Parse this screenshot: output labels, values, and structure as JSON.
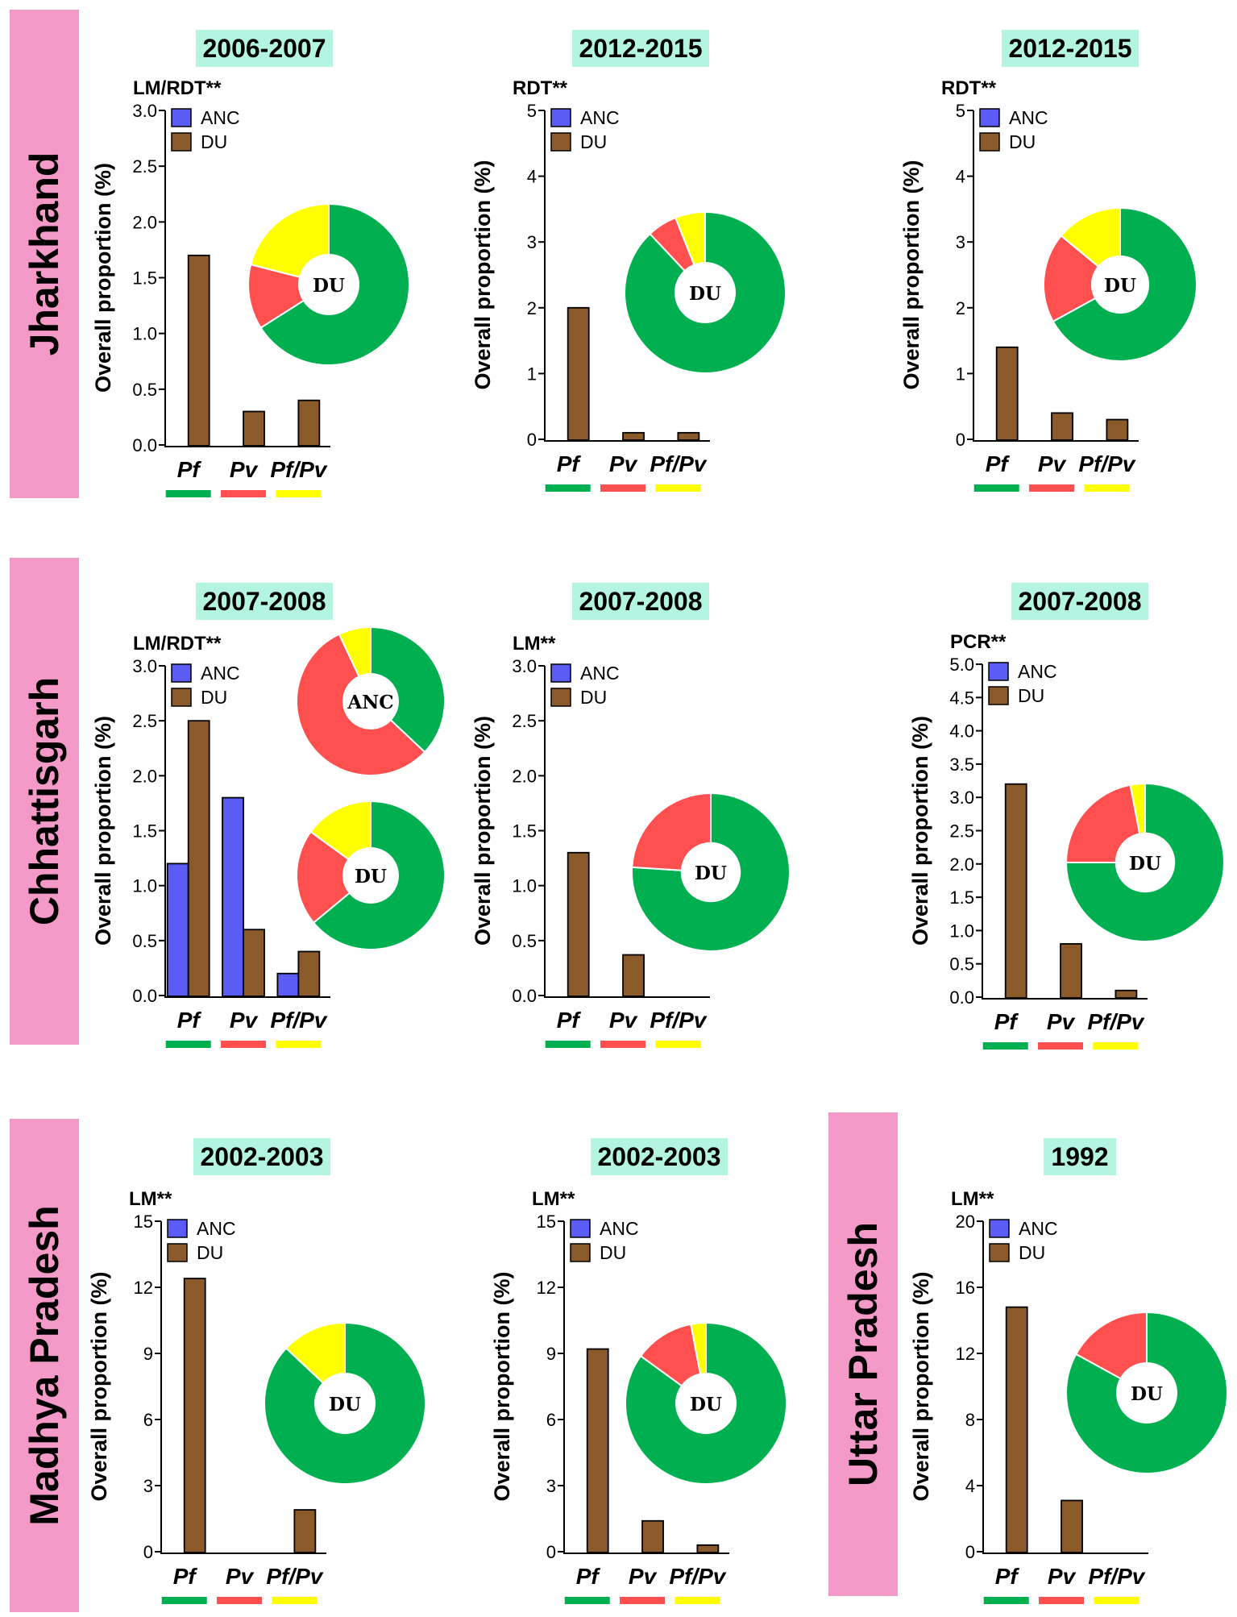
{
  "colors": {
    "anc": "#5a5cf5",
    "du": "#8b5a2b",
    "pf": "#00b050",
    "pv": "#ff4f4f",
    "mixed": "#ffff00",
    "state_bg": "#f49ac8",
    "period_bg": "#b3f5e0"
  },
  "states": [
    {
      "name": "Jharkhand"
    },
    {
      "name": "Chhattisgarh"
    },
    {
      "name": "Madhya Pradesh"
    },
    {
      "name": "Uttar Pradesh"
    }
  ],
  "chart_data": [
    {
      "type": "bar",
      "state": "Jharkhand",
      "period": "2006-2007",
      "method": "LM/RDT**",
      "ylabel": "Overall proportion (%)",
      "ylim": [
        0,
        3.0
      ],
      "yticks": [
        "0.0",
        "0.5",
        "1.0",
        "1.5",
        "2.0",
        "2.5",
        "3.0"
      ],
      "categories": [
        "Pf",
        "Pv",
        "Pf/Pv"
      ],
      "legend": [
        "ANC",
        "DU"
      ],
      "series": [
        {
          "name": "ANC",
          "values": [
            null,
            null,
            null
          ]
        },
        {
          "name": "DU",
          "values": [
            1.7,
            0.3,
            0.4
          ]
        }
      ],
      "pies": [
        {
          "label": "DU",
          "slices": [
            {
              "name": "Pf",
              "value": 66
            },
            {
              "name": "Pv",
              "value": 13
            },
            {
              "name": "Pf/Pv",
              "value": 21
            }
          ]
        }
      ]
    },
    {
      "type": "bar",
      "state": "Jharkhand",
      "period": "2012-2015",
      "method": "RDT**",
      "ylabel": "Overall proportion (%)",
      "ylim": [
        0,
        5
      ],
      "yticks": [
        "0",
        "1",
        "2",
        "3",
        "4",
        "5"
      ],
      "categories": [
        "Pf",
        "Pv",
        "Pf/Pv"
      ],
      "legend": [
        "ANC",
        "DU"
      ],
      "series": [
        {
          "name": "ANC",
          "values": [
            null,
            null,
            null
          ]
        },
        {
          "name": "DU",
          "values": [
            2.0,
            0.1,
            0.1
          ]
        }
      ],
      "pies": [
        {
          "label": "DU",
          "slices": [
            {
              "name": "Pf",
              "value": 88
            },
            {
              "name": "Pv",
              "value": 6
            },
            {
              "name": "Pf/Pv",
              "value": 6
            }
          ]
        }
      ]
    },
    {
      "type": "bar",
      "state": "Jharkhand",
      "period": "2012-2015",
      "method": "RDT**",
      "ylabel": "Overall proportion (%)",
      "ylim": [
        0,
        5
      ],
      "yticks": [
        "0",
        "1",
        "2",
        "3",
        "4",
        "5"
      ],
      "categories": [
        "Pf",
        "Pv",
        "Pf/Pv"
      ],
      "legend": [
        "ANC",
        "DU"
      ],
      "series": [
        {
          "name": "ANC",
          "values": [
            null,
            null,
            null
          ]
        },
        {
          "name": "DU",
          "values": [
            1.4,
            0.4,
            0.3
          ]
        }
      ],
      "pies": [
        {
          "label": "DU",
          "slices": [
            {
              "name": "Pf",
              "value": 67
            },
            {
              "name": "Pv",
              "value": 19
            },
            {
              "name": "Pf/Pv",
              "value": 14
            }
          ]
        }
      ]
    },
    {
      "type": "bar",
      "state": "Chhattisgarh",
      "period": "2007-2008",
      "method": "LM/RDT**",
      "ylabel": "Overall proportion (%)",
      "ylim": [
        0,
        3.0
      ],
      "yticks": [
        "0.0",
        "0.5",
        "1.0",
        "1.5",
        "2.0",
        "2.5",
        "3.0"
      ],
      "categories": [
        "Pf",
        "Pv",
        "Pf/Pv"
      ],
      "legend": [
        "ANC",
        "DU"
      ],
      "series": [
        {
          "name": "ANC",
          "values": [
            1.2,
            1.8,
            0.2
          ]
        },
        {
          "name": "DU",
          "values": [
            2.5,
            0.6,
            0.4
          ]
        }
      ],
      "pies": [
        {
          "label": "ANC",
          "slices": [
            {
              "name": "Pf",
              "value": 37
            },
            {
              "name": "Pv",
              "value": 56
            },
            {
              "name": "Pf/Pv",
              "value": 7
            }
          ]
        },
        {
          "label": "DU",
          "slices": [
            {
              "name": "Pf",
              "value": 64
            },
            {
              "name": "Pv",
              "value": 21
            },
            {
              "name": "Pf/Pv",
              "value": 15
            }
          ]
        }
      ]
    },
    {
      "type": "bar",
      "state": "Chhattisgarh",
      "period": "2007-2008",
      "method": "LM**",
      "ylabel": "Overall proportion (%)",
      "ylim": [
        0,
        3.0
      ],
      "yticks": [
        "0.0",
        "0.5",
        "1.0",
        "1.5",
        "2.0",
        "2.5",
        "3.0"
      ],
      "categories": [
        "Pf",
        "Pv",
        "Pf/Pv"
      ],
      "legend": [
        "ANC",
        "DU"
      ],
      "series": [
        {
          "name": "ANC",
          "values": [
            null,
            null,
            null
          ]
        },
        {
          "name": "DU",
          "values": [
            1.3,
            0.37,
            0
          ]
        }
      ],
      "pies": [
        {
          "label": "DU",
          "slices": [
            {
              "name": "Pf",
              "value": 76
            },
            {
              "name": "Pv",
              "value": 24
            },
            {
              "name": "Pf/Pv",
              "value": 0
            }
          ]
        }
      ]
    },
    {
      "type": "bar",
      "state": "Chhattisgarh",
      "period": "2007-2008",
      "method": "PCR**",
      "ylabel": "Overall proportion (%)",
      "ylim": [
        0,
        5.0
      ],
      "yticks": [
        "0.0",
        "0.5",
        "1.0",
        "1.5",
        "2.0",
        "2.5",
        "3.0",
        "3.5",
        "4.0",
        "4.5",
        "5.0"
      ],
      "categories": [
        "Pf",
        "Pv",
        "Pf/Pv"
      ],
      "legend": [
        "ANC",
        "DU"
      ],
      "series": [
        {
          "name": "ANC",
          "values": [
            null,
            null,
            null
          ]
        },
        {
          "name": "DU",
          "values": [
            3.2,
            0.8,
            0.1
          ]
        }
      ],
      "pies": [
        {
          "label": "DU",
          "slices": [
            {
              "name": "Pf",
              "value": 75
            },
            {
              "name": "Pv",
              "value": 22
            },
            {
              "name": "Pf/Pv",
              "value": 3
            }
          ]
        }
      ]
    },
    {
      "type": "bar",
      "state": "Madhya Pradesh",
      "period": "2002-2003",
      "method": "LM**",
      "ylabel": "Overall proportion (%)",
      "ylim": [
        0,
        15
      ],
      "yticks": [
        "0",
        "3",
        "6",
        "9",
        "12",
        "15"
      ],
      "categories": [
        "Pf",
        "Pv",
        "Pf/Pv"
      ],
      "legend": [
        "ANC",
        "DU"
      ],
      "series": [
        {
          "name": "ANC",
          "values": [
            null,
            null,
            null
          ]
        },
        {
          "name": "DU",
          "values": [
            12.4,
            0,
            1.9
          ]
        }
      ],
      "pies": [
        {
          "label": "DU",
          "slices": [
            {
              "name": "Pf",
              "value": 87
            },
            {
              "name": "Pv",
              "value": 0
            },
            {
              "name": "Pf/Pv",
              "value": 13
            }
          ]
        }
      ]
    },
    {
      "type": "bar",
      "state": "Madhya Pradesh",
      "period": "2002-2003",
      "method": "LM**",
      "ylabel": "Overall proportion (%)",
      "ylim": [
        0,
        15
      ],
      "yticks": [
        "0",
        "3",
        "6",
        "9",
        "12",
        "15"
      ],
      "categories": [
        "Pf",
        "Pv",
        "Pf/Pv"
      ],
      "legend": [
        "ANC",
        "DU"
      ],
      "series": [
        {
          "name": "ANC",
          "values": [
            null,
            null,
            null
          ]
        },
        {
          "name": "DU",
          "values": [
            9.2,
            1.4,
            0.3
          ]
        }
      ],
      "pies": [
        {
          "label": "DU",
          "slices": [
            {
              "name": "Pf",
              "value": 85
            },
            {
              "name": "Pv",
              "value": 12
            },
            {
              "name": "Pf/Pv",
              "value": 3
            }
          ]
        }
      ]
    },
    {
      "type": "bar",
      "state": "Uttar Pradesh",
      "period": "1992",
      "method": "LM**",
      "ylabel": "Overall proportion (%)",
      "ylim": [
        0,
        20
      ],
      "yticks": [
        "0",
        "4",
        "8",
        "12",
        "16",
        "20"
      ],
      "categories": [
        "Pf",
        "Pv",
        "Pf/Pv"
      ],
      "legend": [
        "ANC",
        "DU"
      ],
      "series": [
        {
          "name": "ANC",
          "values": [
            null,
            null,
            null
          ]
        },
        {
          "name": "DU",
          "values": [
            14.8,
            3.1,
            0
          ]
        }
      ],
      "pies": [
        {
          "label": "DU",
          "slices": [
            {
              "name": "Pf",
              "value": 83
            },
            {
              "name": "Pv",
              "value": 17
            },
            {
              "name": "Pf/Pv",
              "value": 0
            }
          ]
        }
      ]
    }
  ]
}
